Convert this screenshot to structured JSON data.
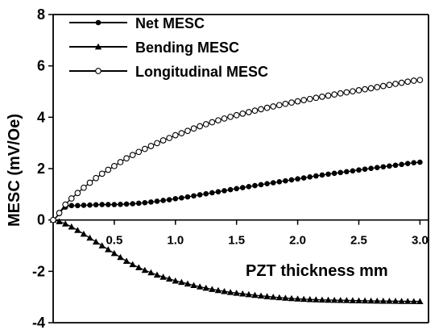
{
  "chart_data": {
    "type": "line",
    "title": "",
    "xlabel": "PZT thickness mm",
    "ylabel": "MESC (mV/Oe)",
    "xlim": [
      0,
      3.07
    ],
    "ylim": [
      -4,
      8
    ],
    "x_ticks": [
      0.5,
      1.0,
      1.5,
      2.0,
      2.5,
      3.0
    ],
    "x_tick_labels": [
      "0.5",
      "1.0",
      "1.5",
      "2.0",
      "2.5",
      "3.0"
    ],
    "y_ticks": [
      -4,
      -2,
      0,
      2,
      4,
      6,
      8
    ],
    "y_tick_labels": [
      "-4",
      "-2",
      "0",
      "2",
      "4",
      "6",
      "8"
    ],
    "grid": false,
    "legend_position": "top-left",
    "series": [
      {
        "name": "Net MESC",
        "marker": "filled-circle",
        "x": [
          0.0,
          0.1,
          0.2,
          0.3,
          0.4,
          0.5,
          0.6,
          0.7,
          0.8,
          0.9,
          1.0,
          1.2,
          1.4,
          1.6,
          1.8,
          2.0,
          2.2,
          2.4,
          2.6,
          2.8,
          3.0
        ],
        "values": [
          0.0,
          0.5,
          0.56,
          0.58,
          0.6,
          0.6,
          0.62,
          0.65,
          0.7,
          0.76,
          0.83,
          0.98,
          1.14,
          1.3,
          1.45,
          1.6,
          1.75,
          1.88,
          2.01,
          2.13,
          2.25
        ]
      },
      {
        "name": "Bending MESC",
        "marker": "filled-triangle",
        "x": [
          0.0,
          0.1,
          0.2,
          0.3,
          0.4,
          0.5,
          0.6,
          0.7,
          0.8,
          0.9,
          1.0,
          1.2,
          1.4,
          1.6,
          1.8,
          2.0,
          2.2,
          2.4,
          2.6,
          2.8,
          3.0
        ],
        "values": [
          0.0,
          -0.15,
          -0.4,
          -0.7,
          -1.0,
          -1.3,
          -1.6,
          -1.85,
          -2.05,
          -2.22,
          -2.37,
          -2.6,
          -2.78,
          -2.9,
          -3.0,
          -3.07,
          -3.11,
          -3.13,
          -3.15,
          -3.16,
          -3.17
        ]
      },
      {
        "name": "Longitudinal MESC",
        "marker": "open-circle",
        "x": [
          0.0,
          0.1,
          0.2,
          0.3,
          0.4,
          0.5,
          0.6,
          0.7,
          0.8,
          0.9,
          1.0,
          1.2,
          1.4,
          1.6,
          1.8,
          2.0,
          2.2,
          2.4,
          2.6,
          2.8,
          3.0
        ],
        "values": [
          0.0,
          0.6,
          1.05,
          1.45,
          1.8,
          2.1,
          2.4,
          2.65,
          2.88,
          3.1,
          3.3,
          3.65,
          3.95,
          4.2,
          4.42,
          4.62,
          4.8,
          4.97,
          5.13,
          5.3,
          5.45
        ]
      }
    ]
  }
}
